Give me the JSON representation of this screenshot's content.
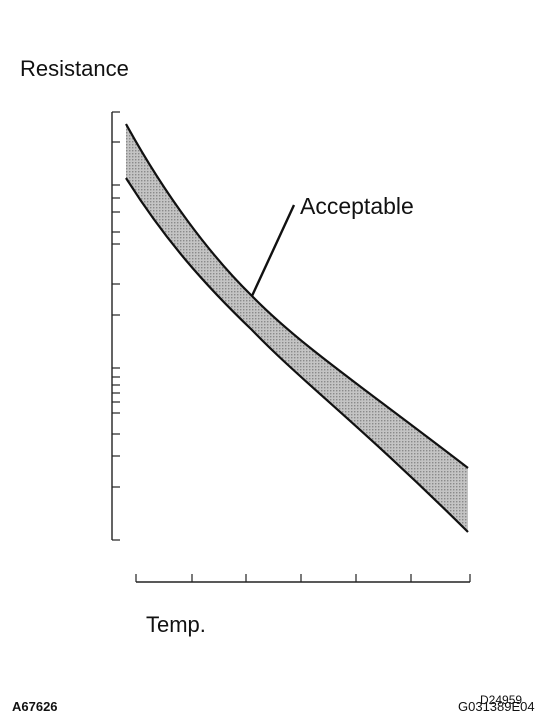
{
  "labels": {
    "y_axis": "Resistance",
    "x_axis": "Temp.",
    "band": "Acceptable",
    "fig_id_left": "A67626",
    "fig_id_right": "G031389E04",
    "fig_id_overprint": "D24959"
  },
  "colors": {
    "band_fill": "#c4c4c4",
    "band_dots": "#8a8a8a",
    "line": "#111111"
  },
  "chart_data": {
    "type": "area",
    "title": "",
    "xlabel": "Temp.",
    "ylabel": "Resistance",
    "y_scale": "log",
    "grid": false,
    "tick_labels": false,
    "series": [
      {
        "name": "Acceptable",
        "kind": "band"
      }
    ]
  }
}
